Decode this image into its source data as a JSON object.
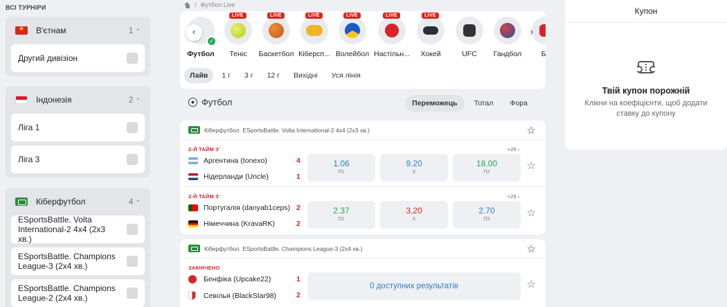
{
  "sidebar": {
    "title": "ВСІ ТУРНІРИ",
    "groups": [
      {
        "name": "В'єтнам",
        "count": "1",
        "items": [
          "Другий дивізіон"
        ]
      },
      {
        "name": "Індонезія",
        "count": "2",
        "items": [
          "Ліга 1",
          "Ліга 3"
        ]
      },
      {
        "name": "Кіберфутбол",
        "count": "4",
        "items": [
          "ESportsBattle. Volta International-2 4х4 (2х3 хв.)",
          "ESportsBattle. Champions League-3 (2х4 хв.)",
          "ESportsBattle. Champions League-2 (2х4 хв.)"
        ]
      }
    ]
  },
  "breadcrumb": {
    "label": "Футбол Live",
    "separator": "/"
  },
  "sports": [
    {
      "label": "Футбол",
      "live": false
    },
    {
      "label": "Теніс",
      "live": true
    },
    {
      "label": "Баскетбол",
      "live": true
    },
    {
      "label": "Кіберсп...",
      "live": true
    },
    {
      "label": "Волейбол",
      "live": true
    },
    {
      "label": "Настільн...",
      "live": true
    },
    {
      "label": "Хокей",
      "live": true
    },
    {
      "label": "UFC",
      "live": false
    },
    {
      "label": "Гандбол",
      "live": false
    },
    {
      "label": "Бо",
      "live": false
    }
  ],
  "live_badge": "LIVE",
  "nav": {
    "prev": "‹",
    "next": "›"
  },
  "time_filters": [
    "Лайв",
    "1 г",
    "3 г",
    "12 г",
    "Вихідні",
    "Уся лінія"
  ],
  "section": {
    "title": "Футбол",
    "market_tabs": [
      "Переможець",
      "Тотал",
      "Фора"
    ]
  },
  "competitions": [
    {
      "title": "Кіберфутбол. ESportsBattle. Volta International-2 4х4 (2х3 хв.)",
      "matches": [
        {
          "period": "2-Й ТАЙМ 3'",
          "more": "+29 ›",
          "home": "Аргентина (tonexo)",
          "home_score": "4",
          "away": "Нідерланди (Uncle)",
          "away_score": "1",
          "odds": [
            {
              "value": "1.06",
              "label": "П1"
            },
            {
              "value": "9.20",
              "label": "Х"
            },
            {
              "value": "18.00",
              "label": "П2"
            }
          ]
        },
        {
          "period": "2-Й ТАЙМ 3'",
          "more": "+29 ›",
          "home": "Португалія (danyab1ceps)",
          "home_score": "2",
          "away": "Німеччина (KravaRK)",
          "away_score": "2",
          "odds": [
            {
              "value": "2.37",
              "label": "П1"
            },
            {
              "value": "3.20",
              "label": "Х"
            },
            {
              "value": "2.70",
              "label": "П2"
            }
          ]
        }
      ]
    },
    {
      "title": "Кіберфутбол. ESportsBattle. Champions League-3 (2х4 хв.)",
      "matches": [
        {
          "period": "ЗАКІНЧЕНО",
          "home": "Бенфіка (Upcake22)",
          "home_score": "1",
          "away": "Севілья (BlackStar98)",
          "away_score": "2",
          "no_results": "0 доступних результатів"
        }
      ]
    }
  ],
  "coupon": {
    "title": "Купон",
    "empty_title": "Твій купон порожній",
    "empty_hint": "Клікни на коефіцієнти, щоб додати ставку до купону"
  },
  "colors": {
    "accent_blue": "#2f7fc1",
    "live_red": "#e2231a",
    "up_green": "#23a95c",
    "down_red": "#d9232a"
  }
}
